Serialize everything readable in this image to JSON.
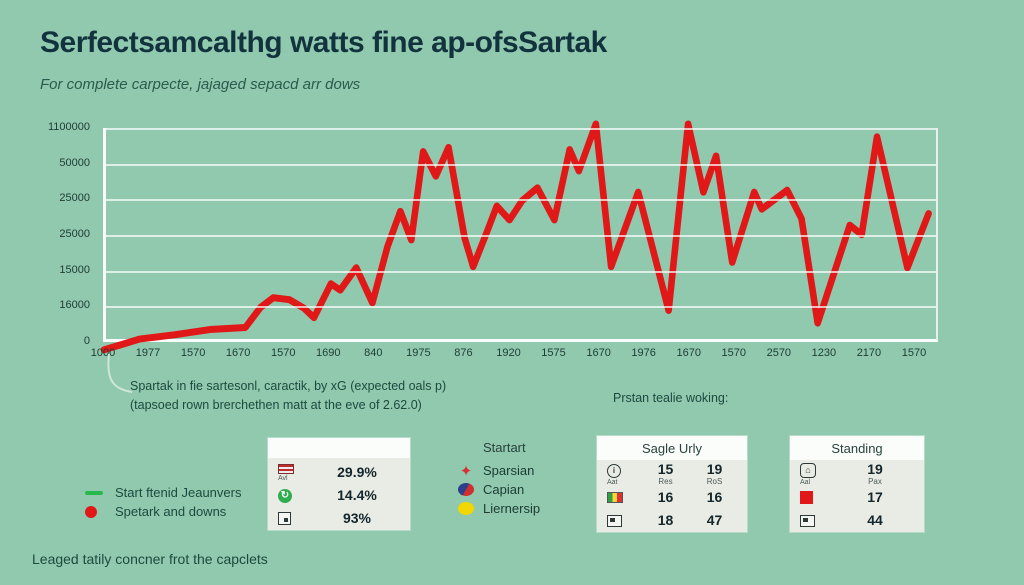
{
  "page": {
    "title": "Serfectsamcalthg watts fine ap-ofsSartak",
    "subtitle": "For complete carpecte, jajaged sepacd arr dows",
    "footer": "Leaged tatily concner frot the capclets"
  },
  "colors": {
    "background": "#90c9ad",
    "title_text": "#12333e",
    "line_red": "#e01818",
    "legend_green": "#27b94e",
    "grid_white": "#ffffff",
    "card_bg": "#e9ece5",
    "card_header_bg": "#fbfdfb"
  },
  "chart_data": {
    "type": "line",
    "title": "",
    "xlabel": "",
    "ylabel": "",
    "grid": true,
    "legend_position": "bottom-left",
    "x_tick_labels": [
      "1000",
      "1977",
      "1570",
      "1670",
      "1570",
      "1690",
      "840",
      "1975",
      "876",
      "1920",
      "1575",
      "1670",
      "1976",
      "1670",
      "1570",
      "2570",
      "1230",
      "2170",
      "1570"
    ],
    "y_tick_labels": [
      "1100000",
      "50000",
      "25000",
      "25000",
      "15000",
      "16000",
      "0"
    ],
    "ylim": [
      0,
      100
    ],
    "series": [
      {
        "name": "Spetark and downs",
        "color": "#e01818",
        "points": [
          [
            0,
            0.9
          ],
          [
            4.2,
            5.6
          ],
          [
            8.3,
            7.5
          ],
          [
            12.5,
            9.8
          ],
          [
            16.7,
            10.7
          ],
          [
            18.5,
            19.6
          ],
          [
            20,
            23.8
          ],
          [
            21.9,
            22.9
          ],
          [
            23.6,
            19.2
          ],
          [
            24.8,
            15
          ],
          [
            26.8,
            29.9
          ],
          [
            27.9,
            27.1
          ],
          [
            29.8,
            36.9
          ],
          [
            31.7,
            21.5
          ],
          [
            33.5,
            46.3
          ],
          [
            35,
            61.7
          ],
          [
            36.3,
            49.1
          ],
          [
            37.7,
            87.9
          ],
          [
            39.2,
            77.1
          ],
          [
            40.7,
            89.7
          ],
          [
            42.6,
            50
          ],
          [
            43.6,
            37.4
          ],
          [
            45.2,
            52.3
          ],
          [
            46.4,
            64
          ],
          [
            47.9,
            57.9
          ],
          [
            49.4,
            66.4
          ],
          [
            51.2,
            72
          ],
          [
            53.2,
            57.9
          ],
          [
            55,
            88.8
          ],
          [
            56.1,
            79.4
          ],
          [
            58.1,
            100
          ],
          [
            59.9,
            37.4
          ],
          [
            63.1,
            70.1
          ],
          [
            66.7,
            18.2
          ],
          [
            69,
            100
          ],
          [
            70.8,
            70.1
          ],
          [
            72.3,
            86
          ],
          [
            74.2,
            39.3
          ],
          [
            76.8,
            70.1
          ],
          [
            77.7,
            62.6
          ],
          [
            80.7,
            71
          ],
          [
            82.4,
            58.4
          ],
          [
            84.3,
            12.6
          ],
          [
            87.1,
            44.4
          ],
          [
            88.1,
            55.6
          ],
          [
            89.5,
            51.4
          ],
          [
            91.3,
            94.4
          ],
          [
            94.9,
            36.9
          ],
          [
            97.4,
            60.7
          ]
        ]
      },
      {
        "name": "Start ftenid Jeaunvers",
        "color": "#27b94e",
        "points": []
      }
    ]
  },
  "annotations": {
    "chart_note_line1": "Spartak in fie sartesonl, caractik, by xG (expected oals p)",
    "chart_note_line2": "(tapsoed rown brerchethen matt at the eve of 2.62.0)",
    "right_note": "Prstan tealie woking:"
  },
  "legend": {
    "items": [
      {
        "marker": "green-dash",
        "label": "Start ftenid Jeaunvers"
      },
      {
        "marker": "red-dot",
        "label": "Spetark and downs"
      }
    ]
  },
  "stats_card": {
    "header": "",
    "rows": [
      {
        "icon": "flag-icon",
        "icon_sub": "Avl",
        "value": "29.9%"
      },
      {
        "icon": "refresh-circle-icon",
        "icon_sub": "",
        "value": "14.4%"
      },
      {
        "icon": "document-icon",
        "icon_sub": "",
        "value": "93%"
      }
    ]
  },
  "start_list": {
    "header": "Startart",
    "items": [
      {
        "icon": "red-star-icon",
        "label": "Sparsian"
      },
      {
        "icon": "dual-circle-icon",
        "label": "Capian"
      },
      {
        "icon": "yellow-circle-icon",
        "label": "Liernersip"
      }
    ]
  },
  "sagle_table": {
    "header": "Sagle Urly",
    "rows": [
      {
        "icon": "clock-icon",
        "icon_sub": "Aat",
        "values": [
          "15",
          "19"
        ],
        "value_subs": [
          "Res",
          "RoS"
        ]
      },
      {
        "icon": "striped-flag-icon",
        "icon_sub": "",
        "values": [
          "16",
          "16"
        ],
        "value_subs": [
          "",
          ""
        ]
      },
      {
        "icon": "flag-box-icon",
        "icon_sub": "",
        "values": [
          "18",
          "47"
        ],
        "value_subs": [
          "",
          ""
        ]
      }
    ]
  },
  "standing_table": {
    "header": "Standing",
    "rows": [
      {
        "icon": "house-icon",
        "icon_sub": "Aal",
        "value": "19",
        "value_sub": "Pax"
      },
      {
        "icon": "red-square-icon",
        "icon_sub": "",
        "value": "17",
        "value_sub": ""
      },
      {
        "icon": "flag-box-icon",
        "icon_sub": "",
        "value": "44",
        "value_sub": ""
      }
    ]
  }
}
